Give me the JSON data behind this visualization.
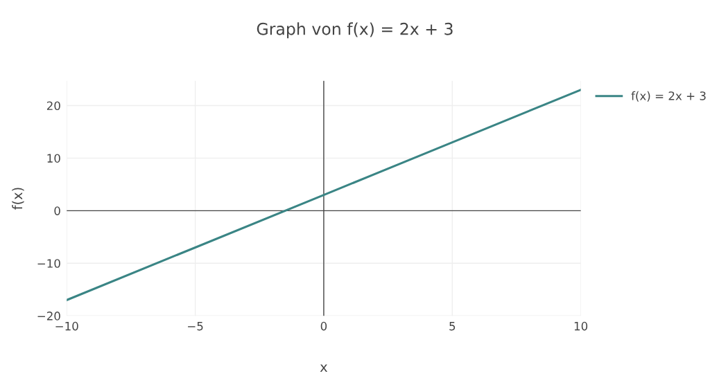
{
  "chart_data": {
    "type": "line",
    "title": "Graph von f(x) = 2x + 3",
    "xlabel": "x",
    "ylabel": "f(x)",
    "x": [
      -10,
      -5,
      0,
      5,
      10
    ],
    "series": [
      {
        "name": "f(x) = 2x + 3",
        "color": "#3a8585",
        "values": [
          -17,
          -7,
          3,
          13,
          23
        ]
      }
    ],
    "xlim": [
      -10,
      10
    ],
    "xticks": [
      {
        "value": -10,
        "label": "−10"
      },
      {
        "value": -5,
        "label": "−5"
      },
      0,
      5,
      10
    ],
    "ylim": [
      -20,
      24.7
    ],
    "yticks": [
      {
        "value": -20,
        "label": "−20"
      },
      {
        "value": -10,
        "label": "−10"
      },
      0,
      10,
      20
    ],
    "grid": true,
    "legend": "top right",
    "marker": "none",
    "line_style": "solid"
  }
}
